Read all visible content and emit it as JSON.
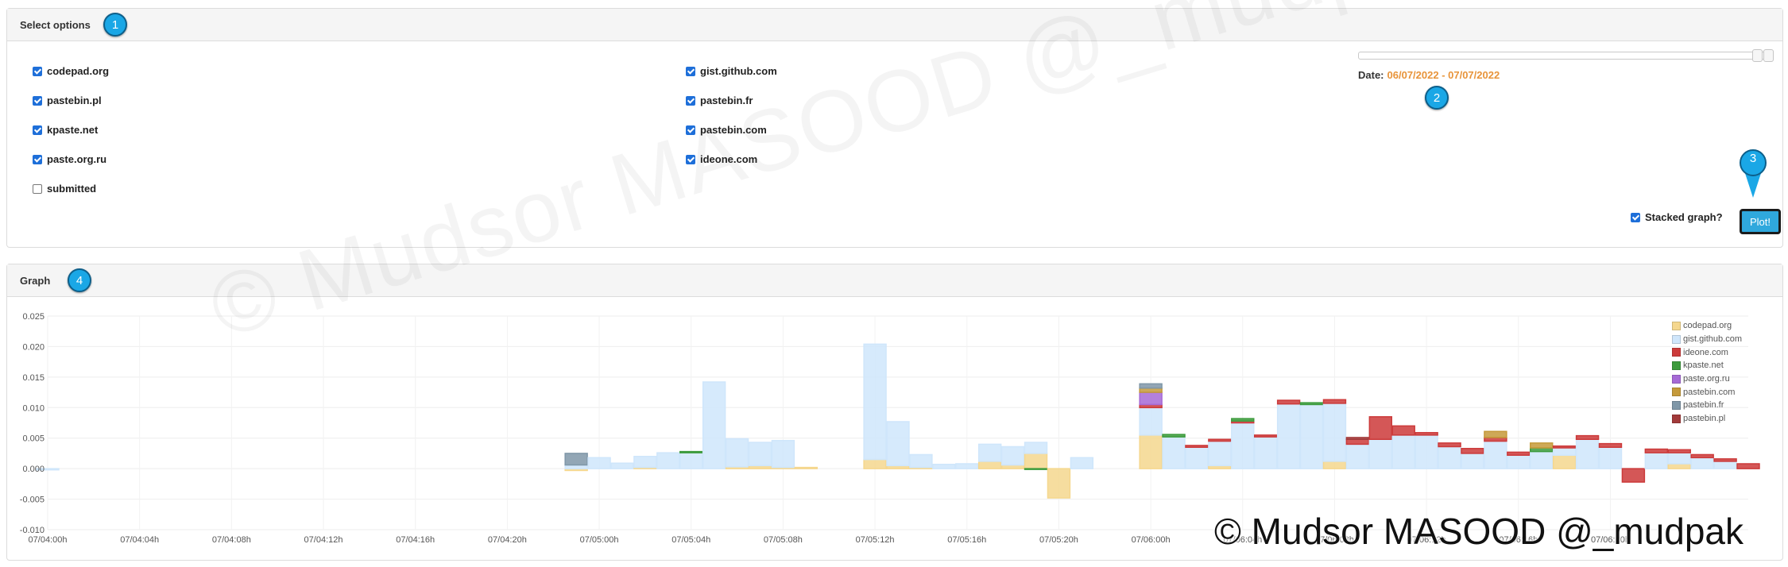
{
  "options_panel": {
    "title": "Select options",
    "step_badge": "1",
    "checkboxes_left": [
      {
        "label": "codepad.org",
        "checked": true
      },
      {
        "label": "pastebin.pl",
        "checked": true
      },
      {
        "label": "kpaste.net",
        "checked": true
      },
      {
        "label": "paste.org.ru",
        "checked": true
      },
      {
        "label": "submitted",
        "checked": false
      }
    ],
    "checkboxes_right": [
      {
        "label": "gist.github.com",
        "checked": true
      },
      {
        "label": "pastebin.fr",
        "checked": true
      },
      {
        "label": "pastebin.com",
        "checked": true
      },
      {
        "label": "ideone.com",
        "checked": true
      }
    ],
    "date_label": "Date:",
    "date_value": "06/07/2022 - 07/07/2022",
    "date_step_badge": "2",
    "stacked_label": "Stacked graph?",
    "stacked_checked": true,
    "plot_button": "Plot!",
    "plot_step_badge": "3"
  },
  "graph_panel": {
    "title": "Graph",
    "step_badge": "4"
  },
  "watermarks": {
    "diagonal": "© Mudsor MASOOD @_mudpak",
    "corner": "© Mudsor MASOOD @_mudpak"
  },
  "colors": {
    "accent": "#1aa7e6",
    "date": "#e8943a"
  },
  "chart_data": {
    "type": "bar",
    "stacked": true,
    "ylim": [
      -0.01,
      0.025
    ],
    "yticks": [
      "0.025",
      "0.020",
      "0.015",
      "0.010",
      "0.005",
      "0.000",
      "-0.005",
      "-0.010"
    ],
    "ytick_values": [
      0.025,
      0.02,
      0.015,
      0.01,
      0.005,
      0,
      -0.005,
      -0.01
    ],
    "xticks": [
      "07/04:00h",
      "07/04:04h",
      "07/04:08h",
      "07/04:12h",
      "07/04:16h",
      "07/04:20h",
      "07/05:00h",
      "07/05:04h",
      "07/05:08h",
      "07/05:12h",
      "07/05:16h",
      "07/05:20h",
      "07/06:00h",
      "07/06:04h",
      "07/06:08h",
      "07/06:12h",
      "07/06:16h",
      "07/06:20h"
    ],
    "x_start_hour": 0,
    "x_end_hour": 74,
    "series": [
      {
        "name": "codepad.org",
        "color": "#f5d78e"
      },
      {
        "name": "gist.github.com",
        "color": "#cfe6fb"
      },
      {
        "name": "ideone.com",
        "color": "#cc3a3a"
      },
      {
        "name": "kpaste.net",
        "color": "#3c9b3c"
      },
      {
        "name": "paste.org.ru",
        "color": "#a66ad6"
      },
      {
        "name": "pastebin.com",
        "color": "#c59a3a"
      },
      {
        "name": "pastebin.fr",
        "color": "#7f97a8"
      },
      {
        "name": "pastebin.pl",
        "color": "#a23a3a"
      }
    ],
    "bars": [
      {
        "hour": 0,
        "values": {
          "gist.github.com": -0.0002
        }
      },
      {
        "hour": 23,
        "values": {
          "gist.github.com": 0.0006,
          "pastebin.fr": 0.0019,
          "codepad.org": -0.0003
        }
      },
      {
        "hour": 24,
        "values": {
          "gist.github.com": 0.0018
        }
      },
      {
        "hour": 25,
        "values": {
          "gist.github.com": 0.0009
        }
      },
      {
        "hour": 26,
        "values": {
          "gist.github.com": 0.0018,
          "codepad.org": 0.0002
        }
      },
      {
        "hour": 27,
        "values": {
          "gist.github.com": 0.0026
        }
      },
      {
        "hour": 28,
        "values": {
          "gist.github.com": 0.0026,
          "kpaste.net": 0.0002
        }
      },
      {
        "hour": 29,
        "values": {
          "gist.github.com": 0.0142
        }
      },
      {
        "hour": 30,
        "values": {
          "gist.github.com": 0.0046,
          "codepad.org": 0.0003
        }
      },
      {
        "hour": 31,
        "values": {
          "gist.github.com": 0.0038,
          "codepad.org": 0.0005
        }
      },
      {
        "hour": 32,
        "values": {
          "gist.github.com": 0.0044,
          "codepad.org": 0.0002
        }
      },
      {
        "hour": 33,
        "values": {
          "codepad.org": 0.0002
        }
      },
      {
        "hour": 36,
        "values": {
          "codepad.org": 0.0015,
          "gist.github.com": 0.0189
        }
      },
      {
        "hour": 37,
        "values": {
          "codepad.org": 0.0005,
          "gist.github.com": 0.0072
        }
      },
      {
        "hour": 38,
        "values": {
          "gist.github.com": 0.0021,
          "codepad.org": 0.0002
        }
      },
      {
        "hour": 39,
        "values": {
          "gist.github.com": 0.0007
        }
      },
      {
        "hour": 40,
        "values": {
          "gist.github.com": 0.0008
        }
      },
      {
        "hour": 41,
        "values": {
          "codepad.org": 0.0012,
          "gist.github.com": 0.0028
        }
      },
      {
        "hour": 42,
        "values": {
          "codepad.org": 0.0006,
          "gist.github.com": 0.003
        }
      },
      {
        "hour": 43,
        "values": {
          "codepad.org": 0.0025,
          "gist.github.com": 0.0018,
          "kpaste.net": -0.0001
        }
      },
      {
        "hour": 44,
        "values": {
          "codepad.org": -0.0048
        }
      },
      {
        "hour": 45,
        "values": {
          "gist.github.com": 0.0018
        }
      },
      {
        "hour": 48,
        "values": {
          "codepad.org": 0.0055,
          "gist.github.com": 0.0045,
          "paste.org.ru": 0.002,
          "pastebin.com": 0.0007,
          "pastebin.fr": 0.0007,
          "ideone.com": 0.0005
        }
      },
      {
        "hour": 49,
        "values": {
          "gist.github.com": 0.0052,
          "kpaste.net": 0.0004
        }
      },
      {
        "hour": 50,
        "values": {
          "gist.github.com": 0.0035,
          "ideone.com": 0.0003
        }
      },
      {
        "hour": 51,
        "values": {
          "codepad.org": 0.0005,
          "gist.github.com": 0.004,
          "ideone.com": 0.0003
        }
      },
      {
        "hour": 52,
        "values": {
          "gist.github.com": 0.0075,
          "kpaste.net": 0.0004,
          "ideone.com": 0.0003
        }
      },
      {
        "hour": 53,
        "values": {
          "gist.github.com": 0.0052,
          "ideone.com": 0.0003
        }
      },
      {
        "hour": 54,
        "values": {
          "gist.github.com": 0.0106,
          "ideone.com": 0.0006
        }
      },
      {
        "hour": 55,
        "values": {
          "gist.github.com": 0.0105,
          "kpaste.net": 0.0003
        }
      },
      {
        "hour": 56,
        "values": {
          "codepad.org": 0.0012,
          "gist.github.com": 0.0095,
          "ideone.com": 0.0006
        }
      },
      {
        "hour": 57,
        "values": {
          "gist.github.com": 0.004,
          "ideone.com": 0.0008,
          "pastebin.pl": 0.0003
        }
      },
      {
        "hour": 58,
        "values": {
          "gist.github.com": 0.0048,
          "ideone.com": 0.0037
        }
      },
      {
        "hour": 59,
        "values": {
          "gist.github.com": 0.0055,
          "ideone.com": 0.0015
        }
      },
      {
        "hour": 60,
        "values": {
          "gist.github.com": 0.0055,
          "ideone.com": 0.0004
        }
      },
      {
        "hour": 61,
        "values": {
          "gist.github.com": 0.0036,
          "ideone.com": 0.0006
        }
      },
      {
        "hour": 62,
        "values": {
          "gist.github.com": 0.0025,
          "ideone.com": 0.0008
        }
      },
      {
        "hour": 63,
        "values": {
          "pastebin.com": 0.001,
          "gist.github.com": 0.0045,
          "ideone.com": 0.0006
        }
      },
      {
        "hour": 64,
        "values": {
          "gist.github.com": 0.0022,
          "ideone.com": 0.0005
        }
      },
      {
        "hour": 65,
        "values": {
          "pastebin.com": 0.0008,
          "gist.github.com": 0.0028,
          "kpaste.net": 0.0006
        }
      },
      {
        "hour": 66,
        "values": {
          "codepad.org": 0.0022,
          "gist.github.com": 0.0012,
          "ideone.com": 0.0003
        }
      },
      {
        "hour": 67,
        "values": {
          "gist.github.com": 0.0048,
          "ideone.com": 0.0006
        }
      },
      {
        "hour": 68,
        "values": {
          "gist.github.com": 0.0035,
          "ideone.com": 0.0006
        }
      },
      {
        "hour": 69,
        "values": {
          "ideone.com": -0.0022
        }
      },
      {
        "hour": 70,
        "values": {
          "gist.github.com": 0.0026,
          "ideone.com": 0.0006
        }
      },
      {
        "hour": 71,
        "values": {
          "codepad.org": 0.0008,
          "gist.github.com": 0.0018,
          "ideone.com": 0.0005
        }
      },
      {
        "hour": 72,
        "values": {
          "gist.github.com": 0.0018,
          "ideone.com": 0.0005
        }
      },
      {
        "hour": 73,
        "values": {
          "gist.github.com": 0.0012,
          "ideone.com": 0.0004
        }
      },
      {
        "hour": 74,
        "values": {
          "ideone.com": 0.0008
        }
      }
    ]
  }
}
